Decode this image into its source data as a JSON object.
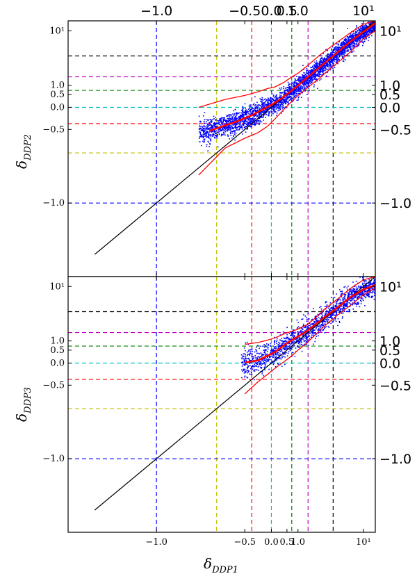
{
  "chart_data": [
    {
      "type": "scatter",
      "panel": "top",
      "ylabel": "δDDP2",
      "ylabel_main": "δ",
      "ylabel_sub": "DDP2",
      "scale": "log(1+δ)",
      "xlim": [
        -1.0,
        14.0
      ],
      "ylim": [
        -1.0,
        14.0
      ],
      "top_axis_ticks": [
        "−1.0",
        "−0.5",
        "0.0",
        "0.5",
        "1.0",
        "10^1"
      ],
      "left_ticks": [
        "10^1",
        "1.0",
        "0.5",
        "0.0",
        "−0.5",
        "−1.0"
      ],
      "right_ticks": [
        "10^1",
        "1.0",
        "0.5",
        "0.0",
        "−0.5",
        "−1.0"
      ],
      "reference_lines": {
        "vertical_x": [
          -0.95,
          -0.76,
          -0.4,
          0.0,
          0.7,
          1.6,
          4.0
        ],
        "horizontal_y": [
          4.0,
          1.6,
          0.7,
          0.0,
          -0.4,
          -0.76,
          -0.95
        ],
        "colors": [
          "#0000ff",
          "#bfbf00",
          "#ff0000",
          "#00bfbf",
          "#008000",
          "#bf00bf",
          "#000000"
        ]
      },
      "scatter_color": "#0000ff",
      "diagonal": {
        "x": [
          -1.0,
          14.0
        ],
        "y": [
          -1.0,
          14.0
        ]
      },
      "median_curve": {
        "x": [
          -0.8,
          -0.6,
          -0.4,
          -0.2,
          0.0,
          0.3,
          0.6,
          1.0,
          1.5,
          2.5,
          4.0,
          7.0,
          14.0
        ],
        "y": [
          -0.52,
          -0.36,
          -0.22,
          -0.06,
          0.08,
          0.32,
          0.6,
          0.98,
          1.5,
          2.5,
          4.0,
          7.0,
          13.0
        ]
      },
      "upper_curve": {
        "x": [
          -0.85,
          -0.7,
          -0.5,
          -0.3,
          -0.1,
          0.1,
          0.4,
          0.7,
          1.0,
          1.5,
          2.5,
          4.0,
          7.0,
          10.0,
          14.0
        ],
        "y": [
          0.0,
          0.28,
          0.45,
          0.62,
          0.8,
          0.9,
          1.2,
          1.6,
          1.9,
          2.6,
          4.1,
          6.0,
          9.5,
          12.5,
          14.0
        ]
      },
      "lower_curve": {
        "x": [
          -0.85,
          -0.7,
          -0.5,
          -0.3,
          -0.1,
          0.1,
          0.4,
          0.7,
          1.0,
          1.5,
          2.5,
          4.0,
          7.0,
          10.0,
          14.0
        ],
        "y": [
          -0.88,
          -0.72,
          -0.62,
          -0.55,
          -0.45,
          -0.3,
          -0.05,
          0.2,
          0.45,
          0.8,
          1.5,
          2.6,
          4.8,
          7.5,
          10.0
        ]
      }
    },
    {
      "type": "scatter",
      "panel": "bottom",
      "ylabel": "δDDP3",
      "ylabel_main": "δ",
      "ylabel_sub": "DDP3",
      "xlabel": "δDDP1",
      "xlabel_main": "δ",
      "xlabel_sub": "DDP1",
      "scale": "log(1+δ)",
      "xlim": [
        -1.0,
        14.0
      ],
      "ylim": [
        -1.0,
        14.0
      ],
      "bottom_axis_ticks": [
        "−1.0",
        "−0.5",
        "0.0",
        "0.5",
        "1.0",
        "10^1"
      ],
      "left_ticks": [
        "10^1",
        "1.0",
        "0.5",
        "0.0",
        "−0.5",
        "−1.0"
      ],
      "right_ticks": [
        "10^1",
        "1.0",
        "0.5",
        "0.0",
        "−0.5",
        "−1.0"
      ],
      "reference_lines": {
        "vertical_x": [
          -0.95,
          -0.76,
          -0.4,
          0.0,
          0.7,
          1.6,
          4.0
        ],
        "horizontal_y": [
          4.0,
          1.6,
          0.7,
          0.0,
          -0.4,
          -0.76,
          -0.95
        ],
        "colors": [
          "#0000ff",
          "#bfbf00",
          "#ff0000",
          "#00bfbf",
          "#008000",
          "#bf00bf",
          "#000000"
        ]
      },
      "scatter_color": "#0000ff",
      "diagonal": {
        "x": [
          -1.0,
          14.0
        ],
        "y": [
          -1.0,
          14.0
        ]
      },
      "median_curve": {
        "x": [
          -0.5,
          -0.3,
          -0.1,
          0.1,
          0.4,
          0.7,
          1.0,
          1.5,
          2.0,
          3.0,
          4.5,
          7.0,
          10.0,
          14.0
        ],
        "y": [
          0.02,
          0.08,
          0.25,
          0.42,
          0.75,
          1.05,
          1.3,
          1.7,
          2.2,
          3.2,
          4.6,
          7.0,
          9.0,
          10.5
        ]
      },
      "upper_curve": {
        "x": [
          -0.5,
          -0.3,
          -0.1,
          0.1,
          0.4,
          0.7,
          1.0,
          1.5,
          2.0,
          3.0,
          4.5,
          7.0,
          10.0,
          14.0
        ],
        "y": [
          0.8,
          0.9,
          1.05,
          1.2,
          1.5,
          1.7,
          1.9,
          2.3,
          2.9,
          4.4,
          6.3,
          9.5,
          12.5,
          14.0
        ]
      },
      "lower_curve": {
        "x": [
          -0.5,
          -0.3,
          -0.1,
          0.1,
          0.4,
          0.7,
          1.0,
          1.5,
          2.0,
          3.0,
          4.5,
          7.0,
          10.0,
          14.0
        ],
        "y": [
          -0.62,
          -0.45,
          -0.3,
          -0.15,
          0.05,
          0.25,
          0.5,
          0.85,
          1.3,
          2.2,
          3.4,
          5.2,
          7.5,
          9.5
        ]
      }
    }
  ]
}
